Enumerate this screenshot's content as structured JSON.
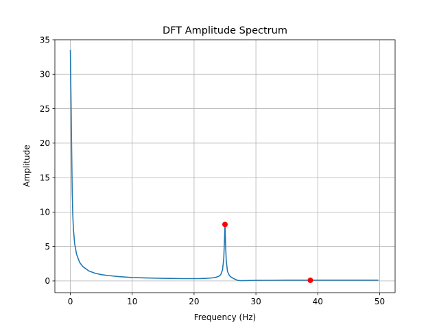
{
  "chart_data": {
    "type": "line",
    "title": "DFT Amplitude Spectrum",
    "xlabel": "Frequency (Hz)",
    "ylabel": "Amplitude",
    "xlim": [
      -2.5,
      52.5
    ],
    "ylim": [
      -1.7,
      35
    ],
    "xticks": [
      0,
      10,
      20,
      30,
      40,
      50
    ],
    "yticks": [
      0,
      5,
      10,
      15,
      20,
      25,
      30,
      35
    ],
    "grid": true,
    "line_color": "#1f77b4",
    "marker_color": "#ff0000",
    "series": [
      {
        "x": [
          0,
          0.1,
          0.2,
          0.3,
          0.4,
          0.5,
          0.7,
          1.0,
          1.5,
          2.0,
          3.0,
          4.0,
          5.0,
          6.0,
          8.0,
          10.0,
          12.0,
          15.0,
          18.0,
          20.0,
          21.0,
          22.0,
          23.0,
          23.5,
          24.0,
          24.3,
          24.6,
          24.8,
          24.9,
          25.0,
          25.1,
          25.2,
          25.4,
          25.7,
          26.0,
          26.5,
          27.0,
          27.5,
          28.0,
          30.0,
          35.0,
          40.0,
          45.0,
          49.8
        ],
        "y": [
          33.5,
          27,
          20,
          13,
          9.5,
          7.5,
          5.4,
          3.9,
          2.7,
          2.1,
          1.45,
          1.12,
          0.92,
          0.8,
          0.62,
          0.5,
          0.44,
          0.38,
          0.34,
          0.34,
          0.35,
          0.38,
          0.45,
          0.52,
          0.68,
          0.9,
          1.6,
          3.2,
          5.5,
          8.2,
          5.2,
          3.0,
          1.4,
          0.8,
          0.55,
          0.3,
          0.1,
          0.05,
          0.05,
          0.1,
          0.12,
          0.12,
          0.12,
          0.12
        ]
      }
    ],
    "markers": [
      {
        "x": 25.0,
        "y": 8.2
      },
      {
        "x": 38.8,
        "y": 0.1
      }
    ]
  }
}
